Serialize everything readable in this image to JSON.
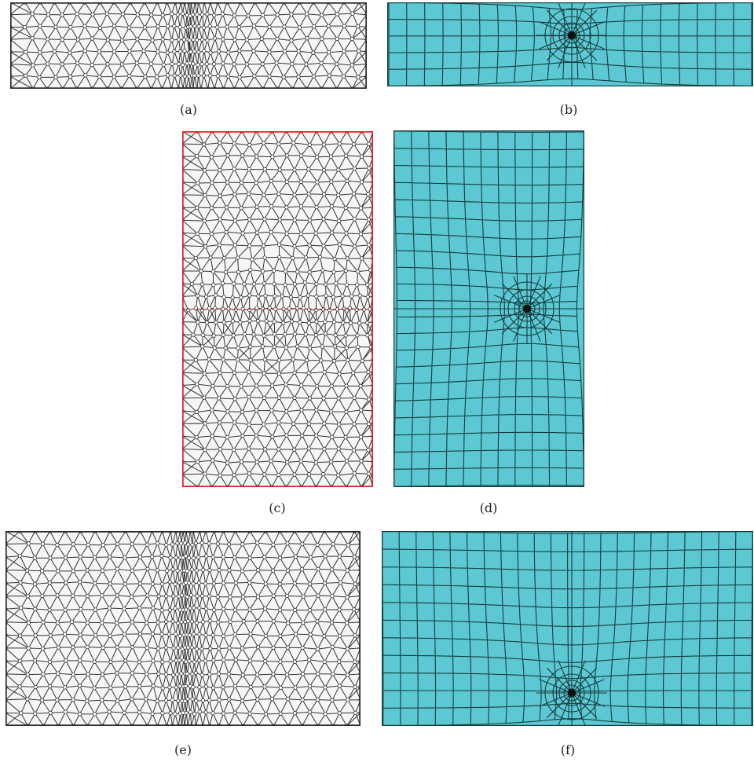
{
  "figure": {
    "panels": [
      {
        "id": "a",
        "caption": "(a)",
        "kind": "triangular-mesh",
        "refine": "vertical-line",
        "boundary_color": "#2b2b2b"
      },
      {
        "id": "b",
        "caption": "(b)",
        "kind": "quad-mesh",
        "refine": "point",
        "fill_color": "#5bc8d4"
      },
      {
        "id": "c",
        "caption": "(c)",
        "kind": "triangular-mesh",
        "refine": "horizontal-line",
        "boundary_color": "#e02020"
      },
      {
        "id": "d",
        "caption": "(d)",
        "kind": "quad-mesh",
        "refine": "horizontal-point",
        "fill_color": "#5bc8d4"
      },
      {
        "id": "e",
        "caption": "(e)",
        "kind": "triangular-mesh",
        "refine": "vertical-line",
        "boundary_color": "#2b2b2b"
      },
      {
        "id": "f",
        "caption": "(f)",
        "kind": "quad-mesh",
        "refine": "vertical-point",
        "fill_color": "#5bc8d4"
      }
    ]
  }
}
